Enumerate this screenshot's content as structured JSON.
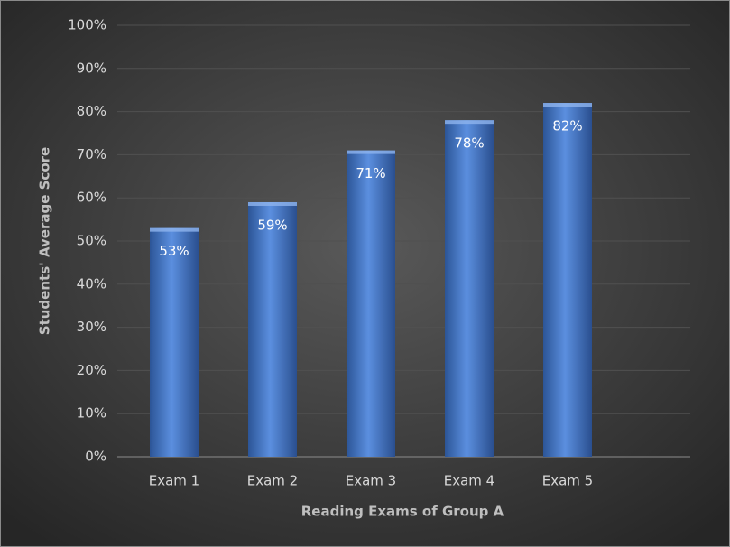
{
  "chart_data": {
    "type": "bar",
    "x_label": "Reading Exams of Group A",
    "y_label": "Students' Average Score",
    "categories": [
      "Exam 1",
      "Exam 2",
      "Exam 3",
      "Exam 4",
      "Exam 5"
    ],
    "values": [
      53,
      59,
      71,
      78,
      82
    ],
    "value_labels": [
      "53%",
      "59%",
      "71%",
      "78%",
      "82%"
    ],
    "color": "#4a7fd0",
    "ylim": [
      0,
      100
    ],
    "yticks": [
      {
        "value": 0,
        "label": "0%"
      },
      {
        "value": 10,
        "label": "10%"
      },
      {
        "value": 20,
        "label": "20%"
      },
      {
        "value": 30,
        "label": "30%"
      },
      {
        "value": 40,
        "label": "40%"
      },
      {
        "value": 50,
        "label": "50%"
      },
      {
        "value": 60,
        "label": "60%"
      },
      {
        "value": 70,
        "label": "70%"
      },
      {
        "value": 80,
        "label": "80%"
      },
      {
        "value": 90,
        "label": "90%"
      },
      {
        "value": 100,
        "label": "100%"
      }
    ],
    "grid": true
  }
}
